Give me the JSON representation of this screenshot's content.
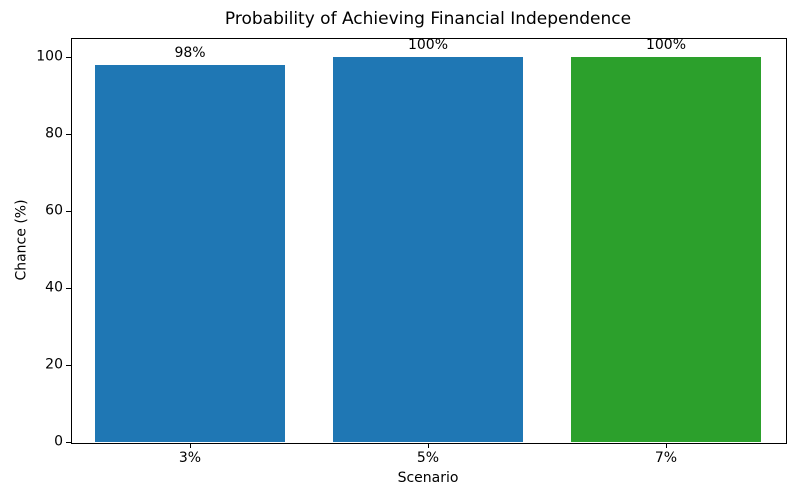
{
  "chart_data": {
    "type": "bar",
    "title": "Probability of Achieving Financial Independence",
    "xlabel": "Scenario",
    "ylabel": "Chance (%)",
    "categories": [
      "3%",
      "5%",
      "7%"
    ],
    "values": [
      98,
      100,
      100
    ],
    "bar_labels": [
      "98%",
      "100%",
      "100%"
    ],
    "bar_colors": [
      "#1f77b4",
      "#1f77b4",
      "#2ca02c"
    ],
    "yticks": [
      0,
      20,
      40,
      60,
      80,
      100
    ],
    "ylim": [
      0,
      105
    ],
    "grid": "off",
    "legend": "none",
    "background_color": "#ffffff",
    "spine_color": "#000000"
  }
}
